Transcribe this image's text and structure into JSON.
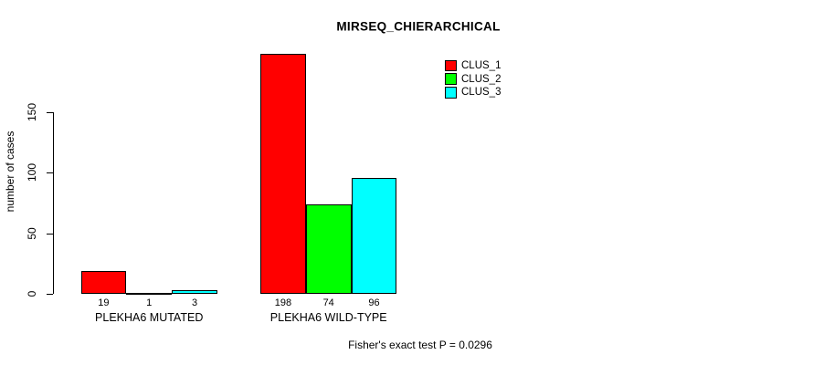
{
  "chart_data": {
    "type": "bar",
    "title": "MIRSEQ_CHIERARCHICAL",
    "ylabel": "number of cases",
    "xlabel": "",
    "footnote": "Fisher's exact test P = 0.0296",
    "categories": [
      "PLEKHA6 MUTATED",
      "PLEKHA6 WILD-TYPE"
    ],
    "series": [
      {
        "name": "CLUS_1",
        "color": "#ff0000",
        "values": [
          19,
          198
        ]
      },
      {
        "name": "CLUS_2",
        "color": "#00ff00",
        "values": [
          1,
          74
        ]
      },
      {
        "name": "CLUS_3",
        "color": "#00ffff",
        "values": [
          3,
          96
        ]
      }
    ],
    "bar_value_labels": [
      [
        19,
        1,
        3
      ],
      [
        198,
        74,
        96
      ]
    ],
    "y_ticks": [
      0,
      50,
      100,
      150
    ],
    "ylim": [
      0,
      150
    ],
    "grid": false,
    "legend_position": "top-right",
    "background_color": "#ffffff",
    "axis_color": "#000000",
    "bar_border_color": "#000000"
  }
}
